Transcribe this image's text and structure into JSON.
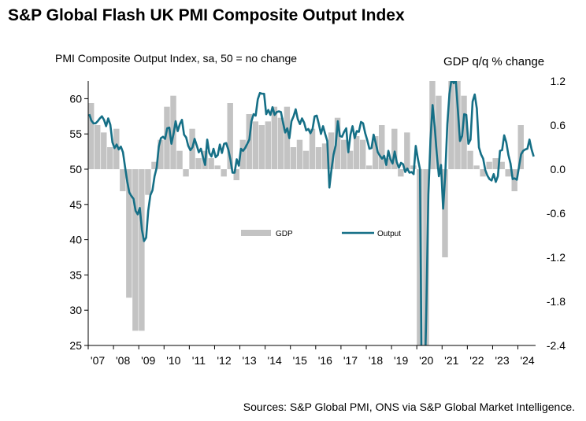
{
  "chart_data": {
    "type": "bar+line",
    "title": "S&P Global Flash UK PMI Composite Output Index",
    "left_axis_label": "PMI Composite  Output  Index, sa, 50 = no change",
    "right_axis_label": "GDP q/q % change",
    "source": "Sources: S&P Global PMI, ONS via S&P Global Market Intelligence.",
    "left_axis": {
      "min": 25,
      "max": 62.5,
      "ticks": [
        "25",
        "30",
        "35",
        "40",
        "45",
        "50",
        "55",
        "60"
      ]
    },
    "right_axis": {
      "min": -2.4,
      "max": 1.2,
      "ticks": [
        "-2.4",
        "-1.8",
        "-1.2",
        "-0.6",
        "0.0",
        "0.6",
        "1.2"
      ]
    },
    "x_ticks": [
      "'07",
      "'08",
      "'09",
      "'10",
      "'11",
      "'12",
      "'13",
      "'14",
      "'15",
      "'16",
      "'17",
      "'18",
      "'19",
      "'20",
      "'21",
      "'22",
      "'23",
      "'24"
    ],
    "legend": [
      {
        "name": "GDP",
        "color": "#c3c3c3"
      },
      {
        "name": "Output",
        "color": "#156f86"
      }
    ],
    "gdp_series": {
      "name": "GDP",
      "x": [
        "2007Q1",
        "2007Q2",
        "2007Q3",
        "2007Q4",
        "2008Q1",
        "2008Q2",
        "2008Q3",
        "2008Q4",
        "2009Q1",
        "2009Q2",
        "2009Q3",
        "2009Q4",
        "2010Q1",
        "2010Q2",
        "2010Q3",
        "2010Q4",
        "2011Q1",
        "2011Q2",
        "2011Q3",
        "2011Q4",
        "2012Q1",
        "2012Q2",
        "2012Q3",
        "2012Q4",
        "2013Q1",
        "2013Q2",
        "2013Q3",
        "2013Q4",
        "2014Q1",
        "2014Q2",
        "2014Q3",
        "2014Q4",
        "2015Q1",
        "2015Q2",
        "2015Q3",
        "2015Q4",
        "2016Q1",
        "2016Q2",
        "2016Q3",
        "2016Q4",
        "2017Q1",
        "2017Q2",
        "2017Q3",
        "2017Q4",
        "2018Q1",
        "2018Q2",
        "2018Q3",
        "2018Q4",
        "2019Q1",
        "2019Q2",
        "2019Q3",
        "2019Q4",
        "2020Q1",
        "2020Q2",
        "2020Q3",
        "2020Q4",
        "2021Q1",
        "2021Q2",
        "2021Q3",
        "2021Q4",
        "2022Q1",
        "2022Q2",
        "2022Q3",
        "2022Q4",
        "2023Q1",
        "2023Q2",
        "2023Q3",
        "2023Q4",
        "2024Q1"
      ],
      "values": [
        0.9,
        0.6,
        0.5,
        0.3,
        0.55,
        -0.3,
        -1.75,
        -2.2,
        -2.2,
        -0.35,
        0.1,
        0.4,
        0.85,
        1.0,
        0.25,
        -0.1,
        0.55,
        0.15,
        0.25,
        0.15,
        0.05,
        -0.1,
        0.9,
        -0.15,
        0.4,
        0.75,
        0.65,
        0.6,
        0.65,
        0.85,
        0.7,
        0.85,
        0.3,
        0.4,
        0.25,
        0.55,
        0.3,
        0.35,
        0.5,
        0.7,
        0.4,
        0.25,
        0.45,
        0.4,
        0.05,
        0.45,
        0.6,
        0.15,
        0.55,
        -0.1,
        0.5,
        0.05,
        -2.4,
        -2.4,
        1.2,
        1.0,
        -1.2,
        1.2,
        1.2,
        1.0,
        0.25,
        0.05,
        -0.1,
        0.1,
        0.15,
        0.1,
        -0.1,
        -0.3,
        0.6
      ]
    },
    "output_series": {
      "name": "Output",
      "start": "2007-01",
      "frequency": "monthly",
      "values": [
        57.8,
        56.9,
        56.5,
        56.5,
        56.8,
        57.2,
        57.5,
        57.0,
        56.1,
        57.2,
        56.3,
        53.8,
        53.0,
        53.5,
        52.8,
        53.2,
        52.4,
        50.3,
        48.3,
        46.7,
        46.2,
        45.8,
        44.1,
        43.6,
        44.5,
        41.4,
        39.8,
        40.3,
        44.1,
        46.3,
        47.0,
        49.0,
        50.2,
        53.2,
        54.4,
        54.6,
        54.3,
        55.8,
        55.9,
        53.6,
        55.0,
        56.8,
        55.4,
        56.4,
        57.0,
        54.9,
        54.5,
        53.3,
        52.7,
        53.1,
        54.3,
        53.4,
        52.4,
        52.9,
        51.7,
        50.6,
        54.2,
        52.3,
        51.8,
        52.9,
        51.7,
        52.0,
        53.5,
        52.3,
        53.6,
        53.7,
        52.8,
        51.4,
        49.5,
        49.5,
        51.4,
        50.5,
        52.9,
        52.6,
        53.0,
        53.6,
        54.2,
        56.8,
        57.8,
        57.6,
        59.9,
        60.8,
        60.7,
        60.7,
        57.8,
        58.4,
        57.7,
        58.8,
        57.7,
        58.1,
        58.2,
        58.1,
        56.6,
        55.2,
        55.8,
        54.4,
        56.8,
        57.5,
        58.5,
        57.1,
        56.4,
        57.2,
        56.6,
        55.5,
        55.7,
        55.1,
        55.7,
        57.5,
        57.6,
        56.4,
        55.0,
        56.1,
        55.0,
        54.0,
        47.4,
        50.0,
        52.1,
        53.4,
        56.8,
        54.7,
        54.6,
        55.3,
        55.8,
        52.4,
        54.9,
        56.1,
        54.4,
        55.4,
        55.3,
        56.7,
        56.5,
        55.1,
        54.1,
        52.9,
        53.0,
        54.9,
        53.7,
        52.4,
        51.9,
        51.5,
        51.9,
        50.6,
        52.6,
        51.4,
        50.8,
        52.5,
        51.0,
        50.2,
        50.9,
        50.7,
        49.6,
        50.1,
        49.5,
        49.6,
        49.3,
        53.3,
        51.5,
        50.0,
        13.8,
        16.1,
        29.6,
        46.4,
        54.2,
        59.1,
        56.0,
        52.1,
        49.0,
        50.6,
        44.4,
        49.2,
        56.4,
        60.7,
        62.8,
        62.2,
        62.6,
        58.4,
        54.0,
        54.7,
        57.8,
        57.7,
        53.6,
        54.2,
        59.6,
        60.6,
        58.6,
        53.1,
        52.1,
        51.5,
        49.9,
        49.1,
        48.6,
        48.4,
        49.3,
        48.2,
        49.0,
        52.6,
        52.7,
        54.8,
        53.8,
        52.0,
        50.8,
        48.6,
        48.7,
        48.5,
        50.3,
        52.1,
        52.6,
        52.8,
        52.9,
        54.2,
        52.8,
        51.8
      ]
    }
  }
}
